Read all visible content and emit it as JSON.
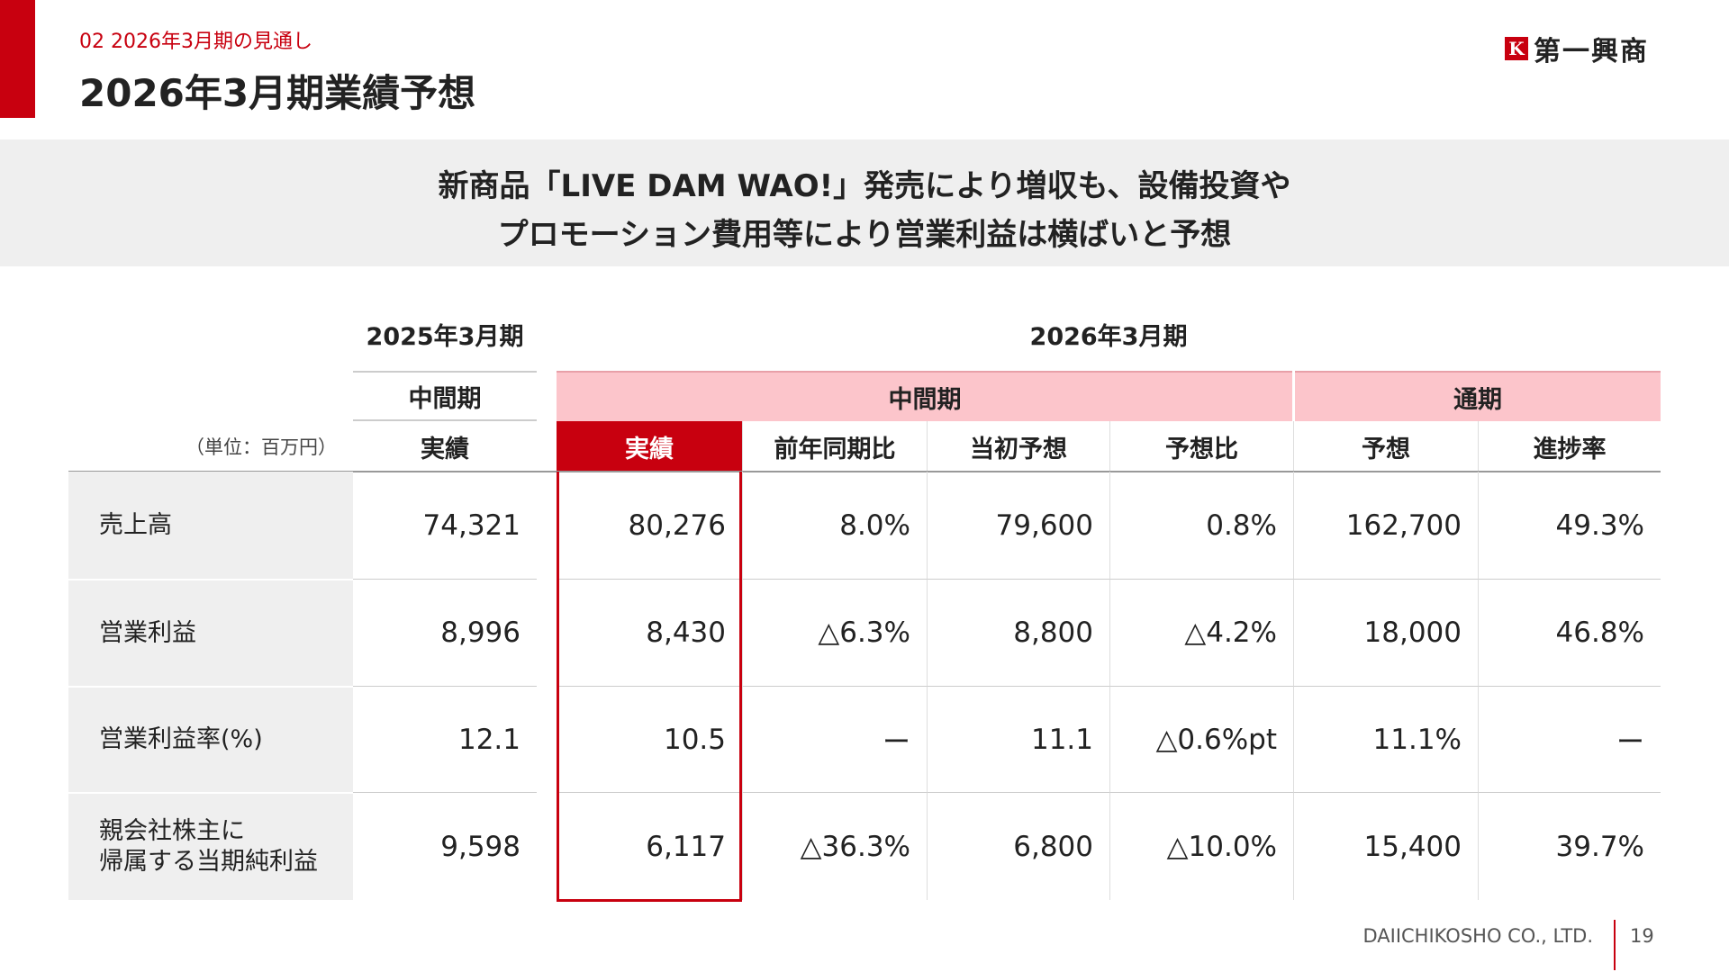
{
  "header": {
    "section": "02  2026年3月期の見通し",
    "title": "2026年3月期業績予想",
    "logo": "第一興商"
  },
  "summary": [
    "新商品「LIVE DAM WAO!」発売により増収も、設備投資や",
    "プロモーション費用等により営業利益は横ばいと予想"
  ],
  "table": {
    "periods": [
      "2025年3月期",
      "2026年3月期"
    ],
    "groups": [
      "中間期",
      "中間期",
      "通期"
    ],
    "unit": "（単位：百万円）",
    "columns": [
      "実績",
      "実績",
      "前年同期比",
      "当初予想",
      "予想比",
      "予想",
      "進捗率"
    ],
    "rows": [
      {
        "label": [
          "売上高"
        ],
        "cells": [
          "74,321",
          "80,276",
          "8.0%",
          "79,600",
          "0.8%",
          "162,700",
          "49.3%"
        ]
      },
      {
        "label": [
          "営業利益"
        ],
        "cells": [
          "8,996",
          "8,430",
          "△6.3%",
          "8,800",
          "△4.2%",
          "18,000",
          "46.8%"
        ]
      },
      {
        "label": [
          "営業利益率(%)"
        ],
        "cells": [
          "12.1",
          "10.5",
          "ー",
          "11.1",
          "△0.6%pt",
          "11.1%",
          "ー"
        ]
      },
      {
        "label": [
          "親会社株主に",
          "帰属する当期純利益"
        ],
        "cells": [
          "9,598",
          "6,117",
          "△36.3%",
          "6,800",
          "△10.0%",
          "15,400",
          "39.7%"
        ]
      }
    ]
  },
  "footer": {
    "company": "DAIICHIKOSHO CO., LTD.",
    "page": "19"
  }
}
